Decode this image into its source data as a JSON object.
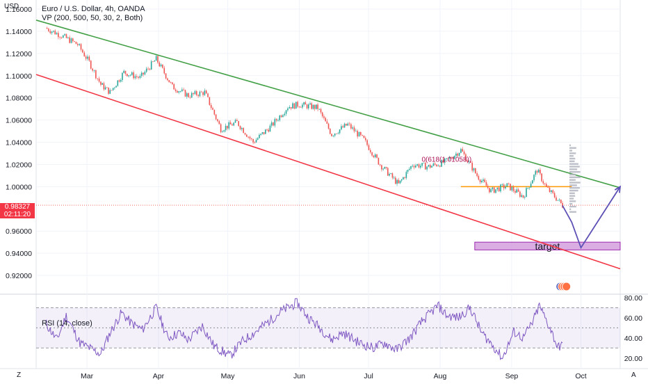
{
  "header": {
    "currency": "USD",
    "title": "Euro / U.S. Dollar, 4h, OANDA",
    "indicator": "VP (200, 500, 50, 30, 2, Both)"
  },
  "price_badge": {
    "price": "0.98327",
    "countdown": "02:11:20"
  },
  "rsi_panel": {
    "title": "RSI (14, close)"
  },
  "annotations": {
    "target_label": "target",
    "fib_label": "0(618(1.01058))"
  },
  "bottom_bar": {
    "left_icon": "Z",
    "right_icon": "A"
  },
  "colors": {
    "upper_channel": "#43a047",
    "lower_channel": "#f23645",
    "horizontal_level": "#ff9800",
    "target_box": "#ce93d8",
    "projection": "#5c4fb5",
    "rsi_line": "#7e57c2",
    "candle_up": "#26a69a",
    "candle_down": "#ef5350"
  },
  "chart_data": [
    {
      "type": "candlestick",
      "ylabel": "USD",
      "y_ticks": [
        "1.16000",
        "1.14000",
        "1.12000",
        "1.10000",
        "1.08000",
        "1.06000",
        "1.04000",
        "1.02000",
        "1.00000",
        "0.96000",
        "0.94000",
        "0.92000"
      ],
      "x_ticks": [
        "Mar",
        "Apr",
        "May",
        "Jun",
        "Jul",
        "Aug",
        "Sep",
        "Oct"
      ],
      "ylim": [
        0.905,
        1.165
      ],
      "price_path": [
        [
          "Feb 11",
          1.143
        ],
        [
          "Feb 18",
          1.136
        ],
        [
          "Feb 25",
          1.128
        ],
        [
          "Mar 2",
          1.112
        ],
        [
          "Mar 7",
          1.092
        ],
        [
          "Mar 11",
          1.085
        ],
        [
          "Mar 17",
          1.103
        ],
        [
          "Mar 24",
          1.098
        ],
        [
          "Mar 31",
          1.115
        ],
        [
          "Apr 7",
          1.09
        ],
        [
          "Apr 14",
          1.082
        ],
        [
          "Apr 21",
          1.085
        ],
        [
          "Apr 28",
          1.052
        ],
        [
          "May 5",
          1.058
        ],
        [
          "May 12",
          1.04
        ],
        [
          "May 20",
          1.055
        ],
        [
          "May 27",
          1.072
        ],
        [
          "Jun 1",
          1.074
        ],
        [
          "Jun 9",
          1.071
        ],
        [
          "Jun 15",
          1.047
        ],
        [
          "Jun 22",
          1.056
        ],
        [
          "Jun 29",
          1.042
        ],
        [
          "Jul 6",
          1.02
        ],
        [
          "Jul 14",
          1.002
        ],
        [
          "Jul 20",
          1.02
        ],
        [
          "Jul 27",
          1.018
        ],
        [
          "Aug 3",
          1.022
        ],
        [
          "Aug 10",
          1.033
        ],
        [
          "Aug 17",
          1.01
        ],
        [
          "Aug 23",
          0.996
        ],
        [
          "Aug 30",
          1.001
        ],
        [
          "Sep 6",
          0.991
        ],
        [
          "Sep 12",
          1.015
        ],
        [
          "Sep 16",
          0.999
        ],
        [
          "Sep 21",
          0.988
        ],
        [
          "Sep 23",
          0.983
        ]
      ],
      "last_price": 0.98327,
      "trendlines": [
        {
          "name": "upper-channel",
          "from": [
            "Feb 7",
            1.15
          ],
          "to": [
            "Oct 18",
            0.999
          ]
        },
        {
          "name": "lower-channel",
          "from": [
            "Feb 7",
            1.101
          ],
          "to": [
            "Oct 18",
            0.926
          ]
        }
      ],
      "horizontal_level": {
        "value": 1.0,
        "from": "Aug 10",
        "to": "Sep 27"
      },
      "target_zone": {
        "low": 0.943,
        "high": 0.95,
        "from": "Aug 16",
        "to": "Oct 18"
      },
      "projection": [
        [
          "Sep 23",
          0.983
        ],
        [
          "Sep 27",
          0.968
        ],
        [
          "Oct 1",
          0.945
        ],
        [
          "Oct 18",
          1.0
        ]
      ]
    },
    {
      "type": "line",
      "title": "RSI (14, close)",
      "y_ticks": [
        "80.00",
        "60.00",
        "40.00",
        "20.00"
      ],
      "ylim": [
        15,
        82
      ],
      "bands": [
        30,
        50,
        70
      ],
      "series": [
        {
          "values": [
            [
              "Feb 11",
              55
            ],
            [
              "Feb 16",
              38
            ],
            [
              "Feb 20",
              62
            ],
            [
              "Feb 26",
              35
            ],
            [
              "Mar 2",
              30
            ],
            [
              "Mar 7",
              24
            ],
            [
              "Mar 11",
              45
            ],
            [
              "Mar 16",
              65
            ],
            [
              "Mar 20",
              55
            ],
            [
              "Mar 25",
              48
            ],
            [
              "Mar 31",
              70
            ],
            [
              "Apr 5",
              40
            ],
            [
              "Apr 10",
              45
            ],
            [
              "Apr 14",
              38
            ],
            [
              "Apr 20",
              52
            ],
            [
              "Apr 25",
              32
            ],
            [
              "May 2",
              22
            ],
            [
              "May 7",
              36
            ],
            [
              "May 13",
              46
            ],
            [
              "May 18",
              55
            ],
            [
              "May 24",
              66
            ],
            [
              "May 31",
              75
            ],
            [
              "Jun 5",
              60
            ],
            [
              "Jun 10",
              50
            ],
            [
              "Jun 15",
              38
            ],
            [
              "Jun 20",
              45
            ],
            [
              "Jun 27",
              35
            ],
            [
              "Jul 3",
              30
            ],
            [
              "Jul 8",
              35
            ],
            [
              "Jul 13",
              28
            ],
            [
              "Jul 19",
              40
            ],
            [
              "Jul 24",
              56
            ],
            [
              "Jul 31",
              72
            ],
            [
              "Aug 4",
              62
            ],
            [
              "Aug 9",
              60
            ],
            [
              "Aug 14",
              70
            ],
            [
              "Aug 19",
              45
            ],
            [
              "Aug 24",
              32
            ],
            [
              "Aug 28",
              20
            ],
            [
              "Sep 2",
              46
            ],
            [
              "Sep 6",
              40
            ],
            [
              "Sep 10",
              55
            ],
            [
              "Sep 13",
              72
            ],
            [
              "Sep 15",
              62
            ],
            [
              "Sep 18",
              48
            ],
            [
              "Sep 21",
              30
            ],
            [
              "Sep 23",
              35
            ]
          ]
        }
      ]
    }
  ]
}
